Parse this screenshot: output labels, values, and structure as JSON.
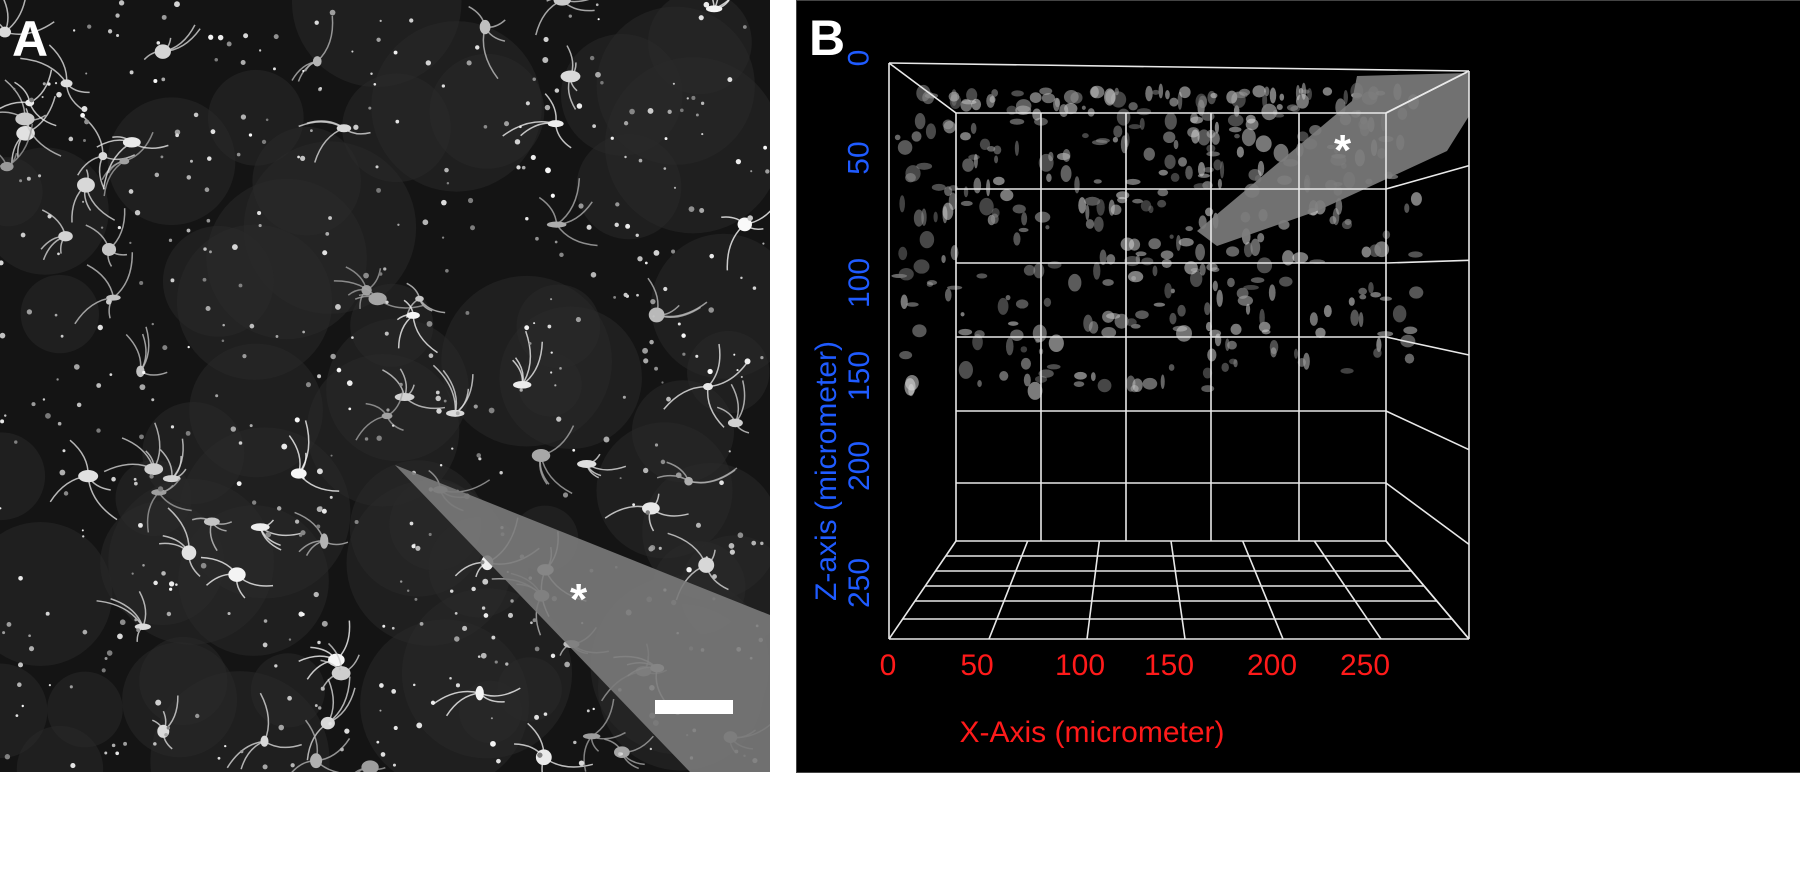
{
  "panel_a": {
    "label": "A",
    "marker": "*",
    "has_scale_bar": true
  },
  "panel_b": {
    "label": "B",
    "marker": "*",
    "z_axis": {
      "label": "Z-axis (micrometer)",
      "ticks": [
        "0",
        "50",
        "100",
        "150",
        "200",
        "250"
      ],
      "color": "#1f5bff"
    },
    "x_axis": {
      "label": "X-Axis (micrometer)",
      "ticks": [
        "0",
        "50",
        "100",
        "150",
        "200",
        "250"
      ],
      "color": "#ff1a1a"
    }
  }
}
